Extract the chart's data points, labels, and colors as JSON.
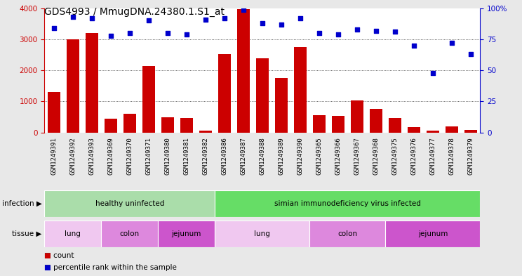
{
  "title": "GDS4993 / MmugDNA.24380.1.S1_at",
  "samples": [
    "GSM1249391",
    "GSM1249392",
    "GSM1249393",
    "GSM1249369",
    "GSM1249370",
    "GSM1249371",
    "GSM1249380",
    "GSM1249381",
    "GSM1249382",
    "GSM1249386",
    "GSM1249387",
    "GSM1249388",
    "GSM1249389",
    "GSM1249390",
    "GSM1249365",
    "GSM1249366",
    "GSM1249367",
    "GSM1249368",
    "GSM1249375",
    "GSM1249376",
    "GSM1249377",
    "GSM1249378",
    "GSM1249379"
  ],
  "counts": [
    1300,
    3000,
    3200,
    450,
    600,
    2150,
    480,
    470,
    60,
    2520,
    3980,
    2380,
    1750,
    2760,
    560,
    530,
    1040,
    760,
    460,
    175,
    50,
    195,
    80
  ],
  "percentiles": [
    84,
    93,
    92,
    78,
    80,
    90,
    80,
    79,
    91,
    92,
    99,
    88,
    87,
    92,
    80,
    79,
    83,
    82,
    81,
    70,
    48,
    72,
    63
  ],
  "bar_color": "#cc0000",
  "dot_color": "#0000cc",
  "ylim_left": [
    0,
    4000
  ],
  "ylim_right": [
    0,
    100
  ],
  "yticks_left": [
    0,
    1000,
    2000,
    3000,
    4000
  ],
  "yticks_right": [
    0,
    25,
    50,
    75,
    100
  ],
  "infection_groups": [
    {
      "label": "healthy uninfected",
      "start": 0,
      "end": 9,
      "color": "#aaddaa"
    },
    {
      "label": "simian immunodeficiency virus infected",
      "start": 9,
      "end": 23,
      "color": "#66dd66"
    }
  ],
  "tissue_groups": [
    {
      "label": "lung",
      "start": 0,
      "end": 3,
      "color": "#f0c8f0"
    },
    {
      "label": "colon",
      "start": 3,
      "end": 6,
      "color": "#dd88dd"
    },
    {
      "label": "jejunum",
      "start": 6,
      "end": 9,
      "color": "#cc55cc"
    },
    {
      "label": "lung",
      "start": 9,
      "end": 14,
      "color": "#f0c8f0"
    },
    {
      "label": "colon",
      "start": 14,
      "end": 18,
      "color": "#dd88dd"
    },
    {
      "label": "jejunum",
      "start": 18,
      "end": 23,
      "color": "#cc55cc"
    }
  ],
  "bg_color": "#e8e8e8",
  "plot_bg": "#ffffff",
  "grid_color": "#333333",
  "title_fontsize": 10,
  "tick_fontsize": 6.5,
  "annot_fontsize": 7.5
}
